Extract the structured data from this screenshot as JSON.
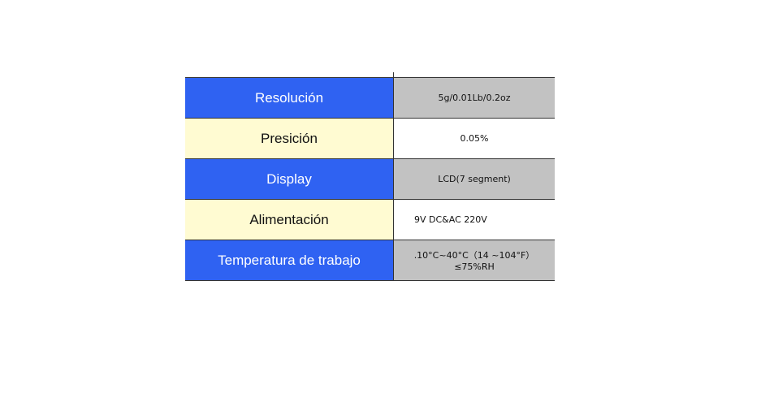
{
  "table": {
    "rows": [
      [
        "Resolución",
        "5g/0.01Lb/0.2oz"
      ],
      [
        "Presición",
        "0.05%"
      ],
      [
        "Display",
        "LCD(7 segment)"
      ],
      [
        "Alimentación",
        "9V DC&AC 220V"
      ],
      [
        "Temperatura de trabajo",
        [
          ".10°C~40°C（14 ~104°F）",
          "≤75%RH"
        ]
      ]
    ]
  }
}
